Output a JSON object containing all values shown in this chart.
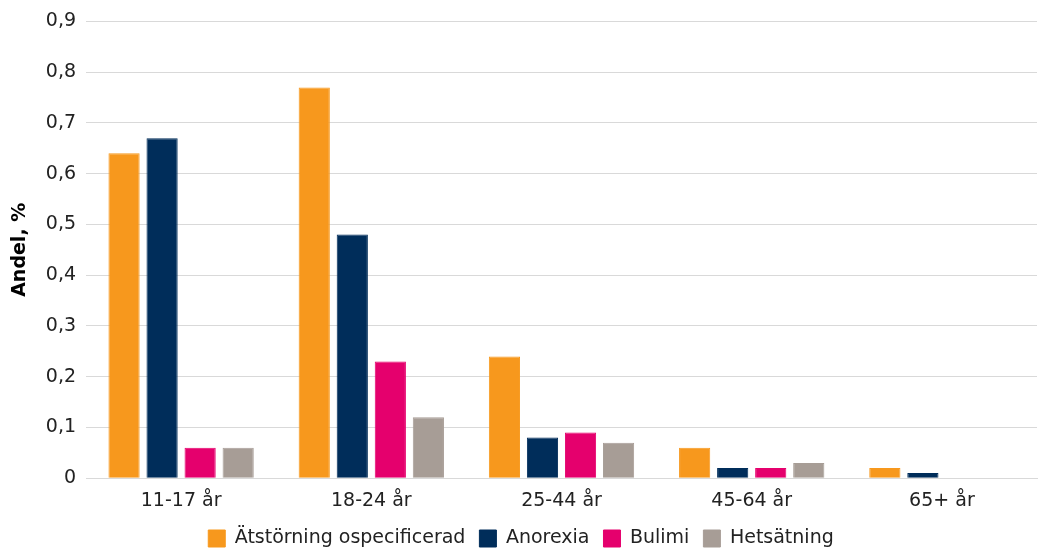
{
  "chart_data": {
    "type": "bar",
    "ylabel": "Andel, %",
    "categories": [
      "11-17 år",
      "18-24 år",
      "25-44 år",
      "45-64 år",
      "65+ år"
    ],
    "series": [
      {
        "name": "Ätstörning ospecificerad",
        "color": "#f7981d",
        "values": [
          0.64,
          0.77,
          0.24,
          0.06,
          0.02
        ]
      },
      {
        "name": "Anorexia",
        "color": "#002d5a",
        "values": [
          0.67,
          0.48,
          0.08,
          0.02,
          0.01
        ]
      },
      {
        "name": "Bulimi",
        "color": "#e5006d",
        "values": [
          0.06,
          0.23,
          0.09,
          0.02,
          0
        ]
      },
      {
        "name": "Hetsätning",
        "color": "#a79d96",
        "values": [
          0.06,
          0.12,
          0.07,
          0.03,
          0
        ]
      }
    ],
    "ylim": [
      0,
      0.9
    ],
    "yticks": [
      {
        "value": 0,
        "label": "0"
      },
      {
        "value": 0.1,
        "label": "0,1"
      },
      {
        "value": 0.2,
        "label": "0,2"
      },
      {
        "value": 0.3,
        "label": "0,3"
      },
      {
        "value": 0.4,
        "label": "0,4"
      },
      {
        "value": 0.5,
        "label": "0,5"
      },
      {
        "value": 0.6,
        "label": "0,6"
      },
      {
        "value": 0.7,
        "label": "0,7"
      },
      {
        "value": 0.8,
        "label": "0,8"
      },
      {
        "value": 0.9,
        "label": "0,9"
      }
    ],
    "grid": "y",
    "legend": "bottom"
  }
}
